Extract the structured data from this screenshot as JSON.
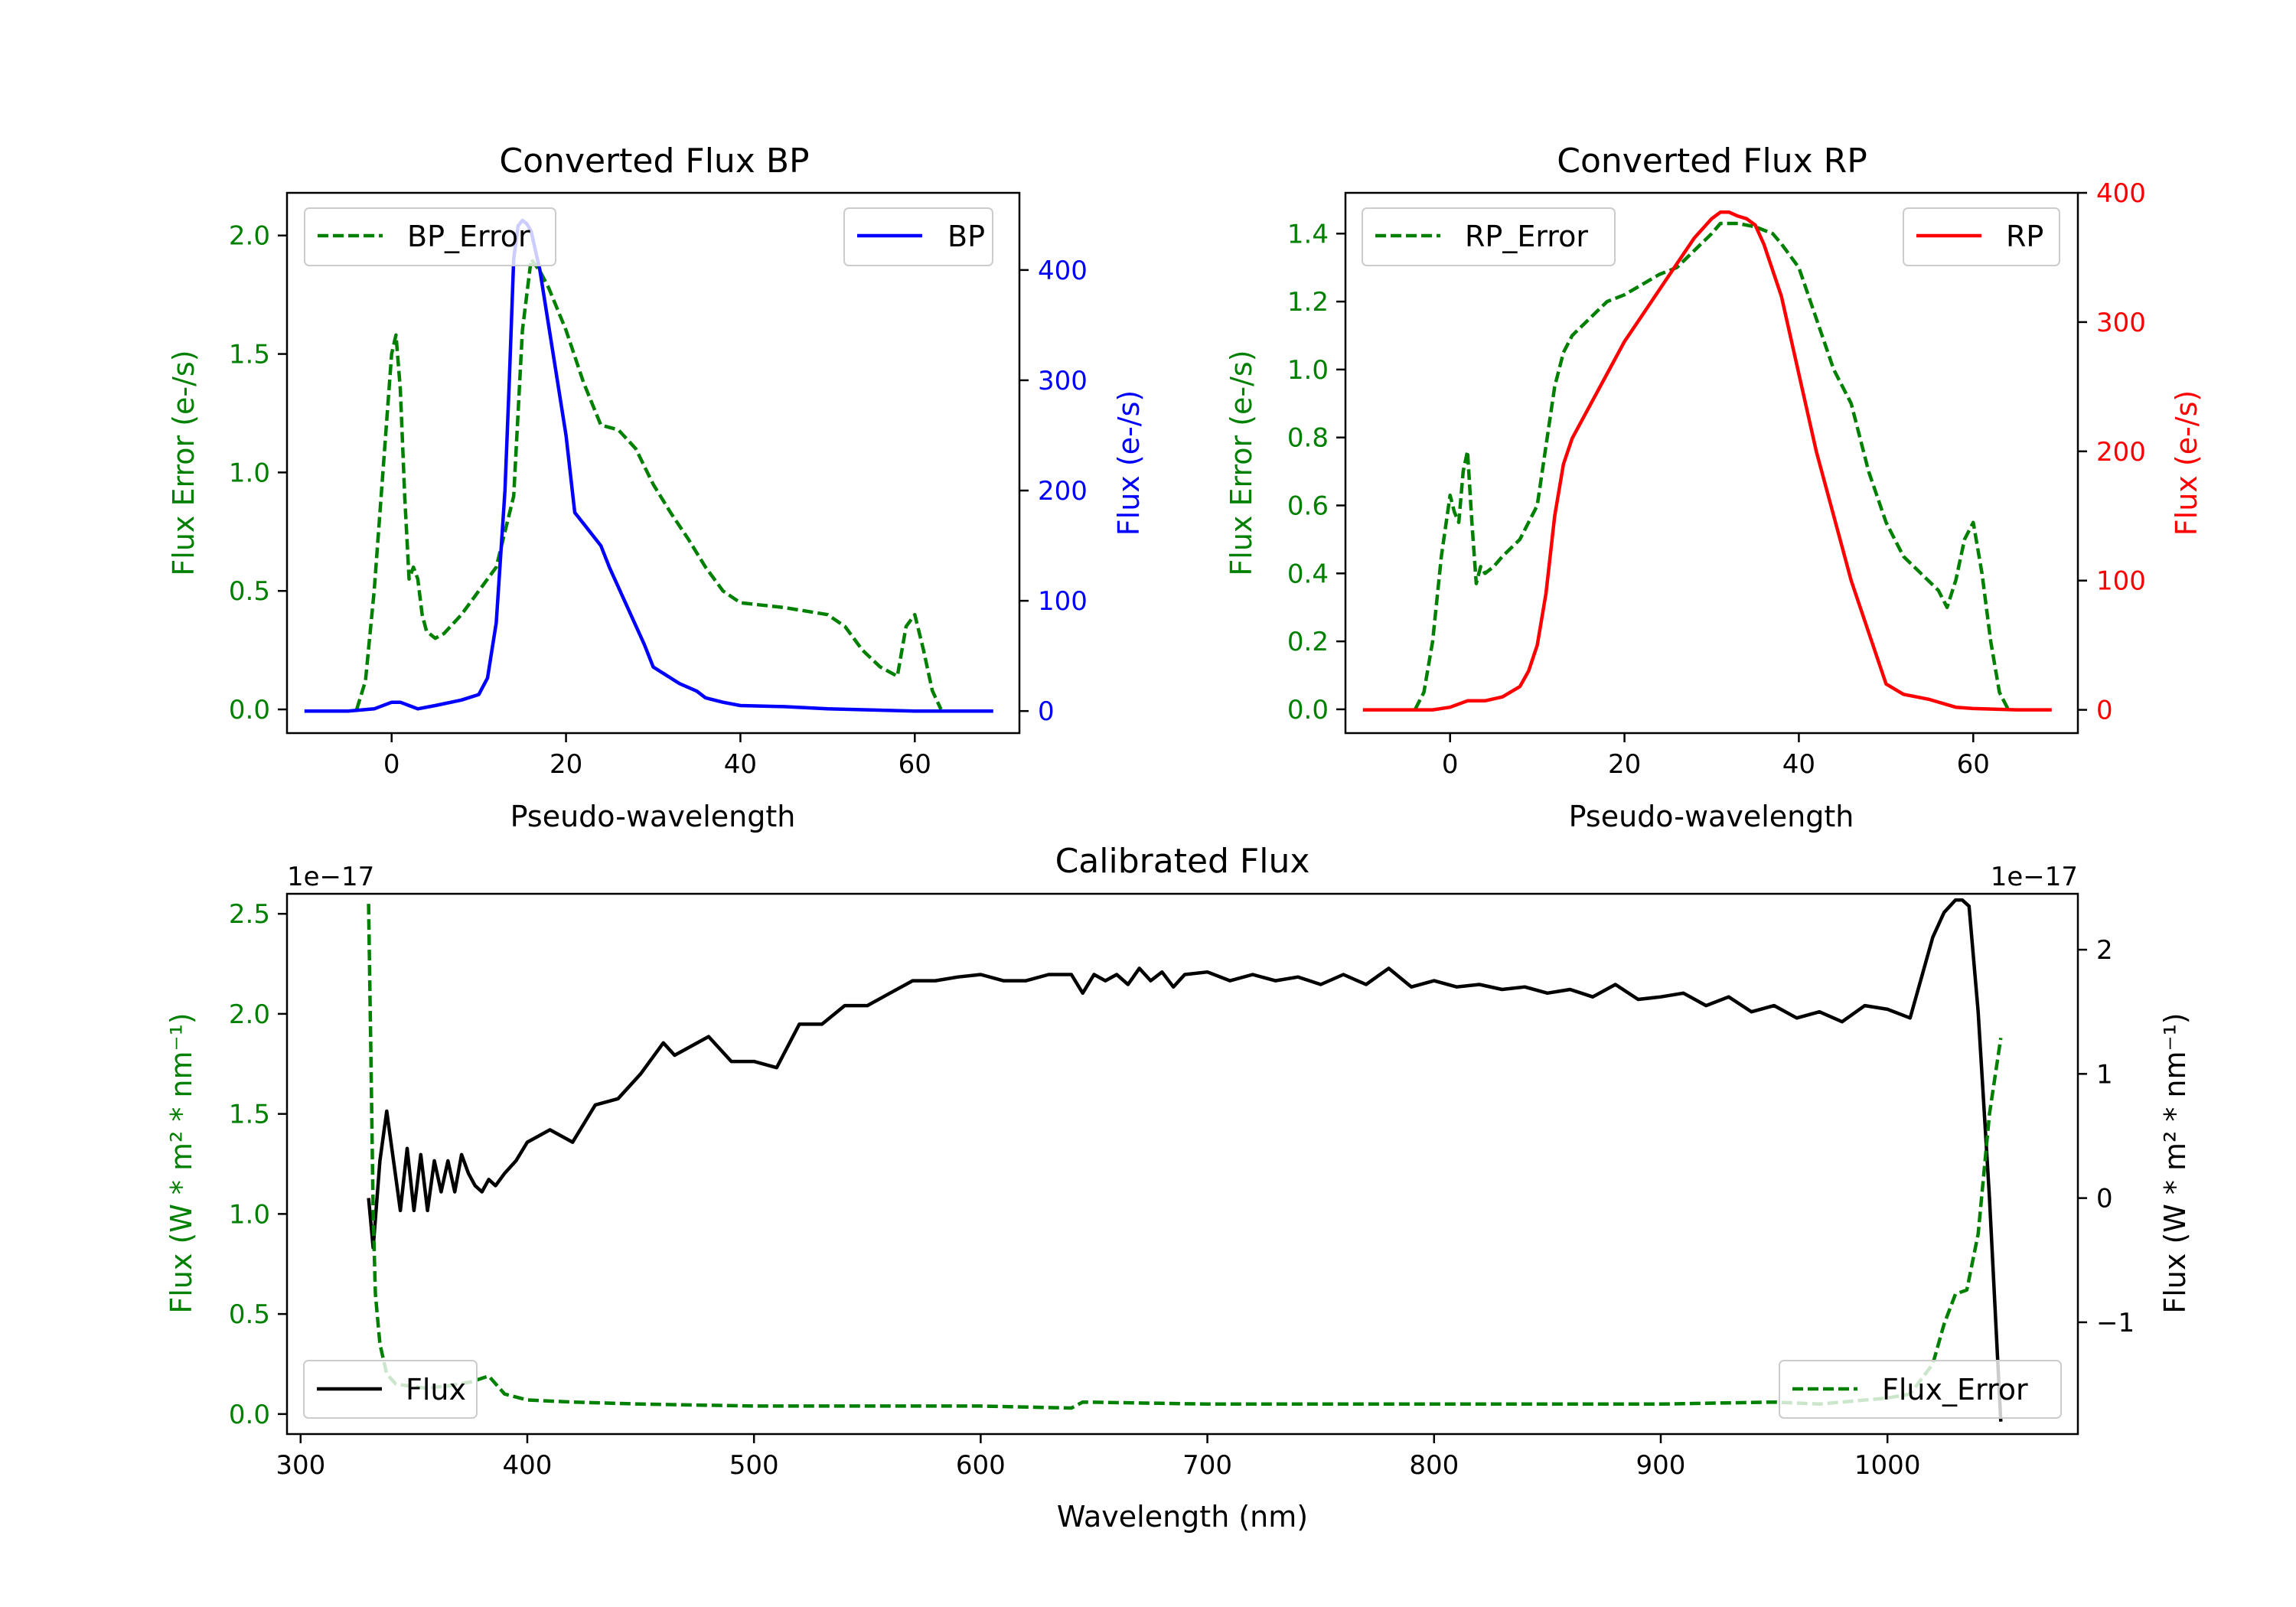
{
  "chart_data": [
    {
      "type": "line",
      "title": "Converted Flux BP",
      "xlabel": "Pseudo-wavelength",
      "ylabel_left": "Flux Error (e-/s)",
      "ylabel_right": "Flux (e-/s)",
      "xlim": [
        -12,
        72
      ],
      "ylim_left": [
        -0.1,
        2.18
      ],
      "ylim_right": [
        -20,
        470
      ],
      "x_ticks": [
        "0",
        "20",
        "40",
        "60"
      ],
      "y_ticks_left": [
        "0.0",
        "0.5",
        "1.0",
        "1.5",
        "2.0"
      ],
      "y_ticks_right": [
        "0",
        "100",
        "200",
        "300",
        "400"
      ],
      "grid": false,
      "series": [
        {
          "name": "BP_Error",
          "axis": "left",
          "color": "#008000",
          "style": "dashed",
          "legend_position": "upper left",
          "x": [
            -4,
            -3,
            -2,
            -1,
            0,
            0.5,
            1,
            1.5,
            2,
            2.5,
            3,
            3.5,
            4,
            5,
            6,
            8,
            10,
            12,
            14,
            15,
            16,
            17,
            18,
            20,
            22,
            24,
            26,
            28,
            30,
            32,
            34,
            36,
            38,
            40,
            45,
            50,
            52,
            54,
            56,
            58,
            59,
            60,
            61,
            62,
            63
          ],
          "y": [
            0.0,
            0.12,
            0.5,
            1.0,
            1.5,
            1.58,
            1.35,
            0.9,
            0.55,
            0.6,
            0.55,
            0.4,
            0.33,
            0.3,
            0.32,
            0.4,
            0.5,
            0.6,
            0.9,
            1.6,
            1.9,
            1.85,
            1.78,
            1.6,
            1.38,
            1.2,
            1.18,
            1.1,
            0.95,
            0.83,
            0.72,
            0.6,
            0.5,
            0.45,
            0.43,
            0.4,
            0.35,
            0.25,
            0.18,
            0.14,
            0.35,
            0.4,
            0.25,
            0.08,
            0.0
          ]
        },
        {
          "name": "BP",
          "axis": "right",
          "color": "#0000ff",
          "style": "solid",
          "legend_position": "upper right",
          "x": [
            -10,
            -5,
            -2,
            0,
            1,
            2,
            3,
            5,
            8,
            10,
            11,
            12,
            13,
            13.5,
            14,
            14.5,
            15,
            15.5,
            16,
            17,
            18,
            19,
            20,
            21,
            22,
            24,
            25,
            27,
            29,
            30,
            31,
            32,
            33,
            35,
            36,
            38,
            40,
            45,
            50,
            55,
            60,
            65,
            69
          ],
          "y": [
            0,
            0,
            2,
            8,
            8,
            5,
            2,
            5,
            10,
            15,
            30,
            80,
            200,
            300,
            410,
            440,
            445,
            442,
            435,
            400,
            350,
            300,
            250,
            180,
            170,
            150,
            130,
            95,
            60,
            40,
            35,
            30,
            25,
            18,
            12,
            8,
            5,
            4,
            2,
            1,
            0,
            0,
            0
          ]
        }
      ]
    },
    {
      "type": "line",
      "title": "Converted Flux RP",
      "xlabel": "Pseudo-wavelength",
      "ylabel_left": "Flux Error (e-/s)",
      "ylabel_right": "Flux (e-/s)",
      "xlim": [
        -12,
        72
      ],
      "ylim_left": [
        -0.07,
        1.52
      ],
      "ylim_right": [
        -18,
        400
      ],
      "x_ticks": [
        "0",
        "20",
        "40",
        "60"
      ],
      "y_ticks_left": [
        "0.0",
        "0.2",
        "0.4",
        "0.6",
        "0.8",
        "1.0",
        "1.2",
        "1.4"
      ],
      "y_ticks_right": [
        "0",
        "100",
        "200",
        "300",
        "400"
      ],
      "grid": false,
      "series": [
        {
          "name": "RP_Error",
          "axis": "left",
          "color": "#008000",
          "style": "dashed",
          "legend_position": "upper left",
          "x": [
            -4,
            -3,
            -2,
            -1,
            0,
            0.5,
            1,
            1.5,
            2,
            2.5,
            3,
            3.5,
            4,
            5,
            6,
            8,
            10,
            12,
            13,
            14,
            16,
            18,
            20,
            22,
            24,
            26,
            28,
            30,
            31,
            33,
            35,
            37,
            38,
            40,
            42,
            44,
            46,
            48,
            50,
            52,
            54,
            56,
            57,
            58,
            59,
            60,
            61,
            62,
            63,
            64
          ],
          "y": [
            0.0,
            0.05,
            0.2,
            0.45,
            0.63,
            0.58,
            0.55,
            0.7,
            0.76,
            0.55,
            0.37,
            0.42,
            0.4,
            0.42,
            0.45,
            0.5,
            0.6,
            0.95,
            1.05,
            1.1,
            1.15,
            1.2,
            1.22,
            1.25,
            1.28,
            1.3,
            1.35,
            1.4,
            1.43,
            1.43,
            1.42,
            1.4,
            1.37,
            1.3,
            1.15,
            1.0,
            0.9,
            0.7,
            0.55,
            0.45,
            0.4,
            0.35,
            0.3,
            0.38,
            0.5,
            0.55,
            0.4,
            0.2,
            0.05,
            0.0
          ]
        },
        {
          "name": "RP",
          "axis": "right",
          "color": "#ff0000",
          "style": "solid",
          "legend_position": "upper right",
          "x": [
            -10,
            -5,
            -2,
            0,
            2,
            4,
            6,
            8,
            9,
            10,
            11,
            12,
            13,
            14,
            16,
            18,
            20,
            22,
            24,
            26,
            28,
            30,
            31,
            32,
            33,
            34,
            35,
            36,
            38,
            40,
            42,
            44,
            46,
            48,
            50,
            52,
            55,
            58,
            60,
            65,
            69
          ],
          "y": [
            0,
            0,
            0,
            2,
            7,
            7,
            10,
            18,
            30,
            50,
            90,
            150,
            190,
            210,
            235,
            260,
            285,
            305,
            325,
            345,
            365,
            380,
            385,
            385,
            382,
            380,
            375,
            360,
            320,
            260,
            200,
            150,
            100,
            60,
            20,
            12,
            8,
            2,
            1,
            0,
            0
          ]
        }
      ]
    },
    {
      "type": "line",
      "title": "Calibrated Flux",
      "xlabel": "Wavelength (nm)",
      "ylabel_left": "Flux (W * m² * nm⁻¹)",
      "ylabel_right": "Flux (W * m² * nm⁻¹)",
      "offset_left": "1e−17",
      "offset_right": "1e−17",
      "xlim": [
        294,
        1084
      ],
      "ylim_left": [
        -0.1,
        2.6
      ],
      "ylim_right": [
        -1.9,
        2.45
      ],
      "x_ticks": [
        "300",
        "400",
        "500",
        "600",
        "700",
        "800",
        "900",
        "1000"
      ],
      "y_ticks_left": [
        "0.0",
        "0.5",
        "1.0",
        "1.5",
        "2.0",
        "2.5"
      ],
      "y_ticks_right": [
        "−1",
        "0",
        "1",
        "2"
      ],
      "grid": false,
      "series": [
        {
          "name": "Flux",
          "axis": "right",
          "color": "#000000",
          "style": "solid",
          "legend_position": "lower left",
          "x": [
            330,
            332,
            335,
            338,
            341,
            344,
            347,
            350,
            353,
            356,
            359,
            362,
            365,
            368,
            371,
            374,
            377,
            380,
            383,
            386,
            390,
            395,
            400,
            410,
            420,
            425,
            430,
            440,
            450,
            460,
            465,
            470,
            480,
            490,
            500,
            510,
            520,
            530,
            540,
            550,
            560,
            570,
            580,
            590,
            600,
            610,
            620,
            630,
            640,
            645,
            650,
            655,
            660,
            665,
            670,
            675,
            680,
            685,
            690,
            700,
            710,
            720,
            730,
            740,
            750,
            760,
            770,
            780,
            790,
            800,
            810,
            820,
            830,
            840,
            850,
            860,
            870,
            880,
            890,
            900,
            910,
            920,
            930,
            940,
            950,
            960,
            970,
            980,
            990,
            1000,
            1010,
            1020,
            1025,
            1030,
            1033,
            1036,
            1040,
            1045,
            1050
          ],
          "y": [
            0.0,
            -0.4,
            0.3,
            0.7,
            0.3,
            -0.1,
            0.4,
            -0.1,
            0.35,
            -0.1,
            0.3,
            0.05,
            0.3,
            0.05,
            0.35,
            0.2,
            0.1,
            0.05,
            0.15,
            0.1,
            0.2,
            0.3,
            0.45,
            0.55,
            0.45,
            0.6,
            0.75,
            0.8,
            1.0,
            1.25,
            1.15,
            1.2,
            1.3,
            1.1,
            1.1,
            1.05,
            1.4,
            1.4,
            1.55,
            1.55,
            1.65,
            1.75,
            1.75,
            1.78,
            1.8,
            1.75,
            1.75,
            1.8,
            1.8,
            1.65,
            1.8,
            1.75,
            1.8,
            1.72,
            1.85,
            1.75,
            1.82,
            1.7,
            1.8,
            1.82,
            1.75,
            1.8,
            1.75,
            1.78,
            1.72,
            1.8,
            1.72,
            1.85,
            1.7,
            1.75,
            1.7,
            1.72,
            1.68,
            1.7,
            1.65,
            1.68,
            1.62,
            1.72,
            1.6,
            1.62,
            1.65,
            1.55,
            1.62,
            1.5,
            1.55,
            1.45,
            1.5,
            1.42,
            1.55,
            1.52,
            1.45,
            2.1,
            2.3,
            2.4,
            2.4,
            2.35,
            1.5,
            0.0,
            -1.8
          ]
        },
        {
          "name": "Flux_Error",
          "axis": "left",
          "color": "#008000",
          "style": "dashed",
          "legend_position": "lower right",
          "x": [
            330,
            331,
            332,
            333,
            335,
            338,
            342,
            348,
            355,
            365,
            375,
            383,
            390,
            400,
            420,
            450,
            500,
            550,
            600,
            640,
            645,
            700,
            800,
            900,
            950,
            970,
            980,
            1000,
            1010,
            1020,
            1025,
            1030,
            1035,
            1040,
            1045,
            1050
          ],
          "y": [
            2.55,
            1.8,
            1.0,
            0.6,
            0.35,
            0.2,
            0.15,
            0.14,
            0.13,
            0.14,
            0.16,
            0.19,
            0.1,
            0.07,
            0.06,
            0.05,
            0.04,
            0.04,
            0.04,
            0.03,
            0.06,
            0.05,
            0.05,
            0.05,
            0.06,
            0.05,
            0.06,
            0.08,
            0.1,
            0.25,
            0.45,
            0.6,
            0.62,
            0.9,
            1.5,
            1.88
          ]
        }
      ]
    }
  ]
}
